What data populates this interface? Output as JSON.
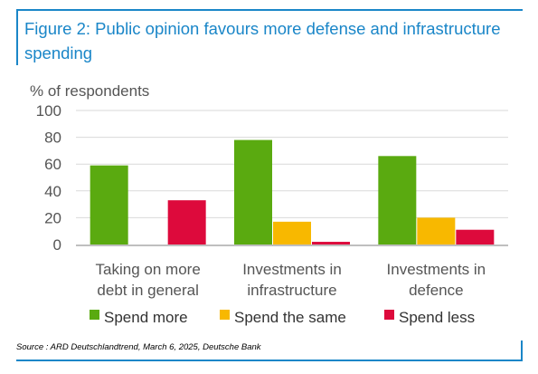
{
  "header": {
    "title": "Figure 2: Public opinion favours more defense and infrastructure spending"
  },
  "footer": {
    "source": "Source : ARD Deutschlandtrend, March 6, 2025, Deutsche Bank"
  },
  "chart_data": {
    "type": "bar",
    "ylabel": "% of respondents",
    "ylim": [
      0,
      100
    ],
    "yticks": [
      "0",
      "20",
      "40",
      "60",
      "80",
      "100"
    ],
    "grid": true,
    "legend_position": "bottom",
    "categories": [
      [
        "Taking on more",
        "debt in general"
      ],
      [
        "Investments in",
        "infrastructure"
      ],
      [
        "Investments in",
        "defence"
      ]
    ],
    "series": [
      {
        "name": "Spend more",
        "color": "#5aaa10",
        "values": [
          59,
          78,
          66
        ]
      },
      {
        "name": "Spend the same",
        "color": "#f8b800",
        "values": [
          0,
          17,
          20
        ]
      },
      {
        "name": "Spend less",
        "color": "#dd0a3c",
        "values": [
          33,
          2,
          11
        ]
      }
    ]
  }
}
